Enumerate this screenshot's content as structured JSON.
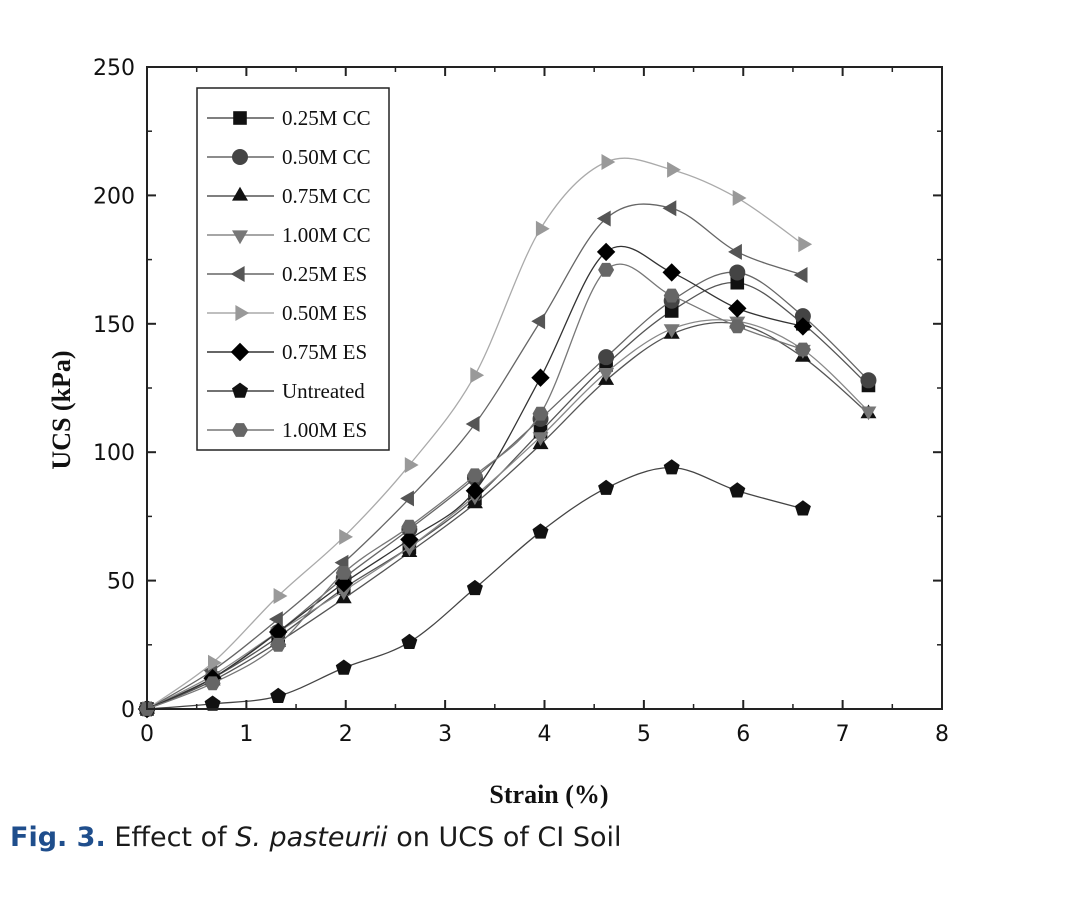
{
  "chart_data": {
    "type": "line",
    "xlabel": "Strain (%)",
    "ylabel": "UCS (kPa)",
    "xlim": [
      0,
      8
    ],
    "ylim": [
      0,
      250
    ],
    "xticks": [
      0,
      1,
      2,
      3,
      4,
      5,
      6,
      7,
      8
    ],
    "yticks": [
      0,
      50,
      100,
      150,
      200,
      250
    ],
    "grid": false,
    "legend_position": "top-left",
    "series": [
      {
        "name": "0.25M CC",
        "marker": "square",
        "color": "#111111",
        "line_color": "#555555",
        "x": [
          0,
          0.66,
          1.32,
          1.98,
          2.64,
          3.3,
          3.96,
          4.62,
          5.28,
          5.94,
          6.6,
          7.26
        ],
        "y": [
          0,
          12,
          28,
          47,
          63,
          82,
          108,
          134,
          155,
          166,
          150,
          126
        ]
      },
      {
        "name": "0.50M CC",
        "marker": "circle",
        "color": "#444444",
        "line_color": "#666666",
        "x": [
          0,
          0.66,
          1.32,
          1.98,
          2.64,
          3.3,
          3.96,
          4.62,
          5.28,
          5.94,
          6.6,
          7.26
        ],
        "y": [
          0,
          12,
          30,
          51,
          70,
          90,
          113,
          137,
          159,
          170,
          153,
          128
        ]
      },
      {
        "name": "0.75M CC",
        "marker": "triangle-up",
        "color": "#111111",
        "line_color": "#555555",
        "x": [
          0,
          0.66,
          1.32,
          1.98,
          2.64,
          3.3,
          3.96,
          4.62,
          5.28,
          5.94,
          6.6,
          7.26
        ],
        "y": [
          0,
          11,
          26,
          43,
          61,
          80,
          103,
          128,
          146,
          150,
          137,
          115
        ]
      },
      {
        "name": "1.00M CC",
        "marker": "triangle-down",
        "color": "#777777",
        "line_color": "#888888",
        "x": [
          0,
          0.66,
          1.32,
          1.98,
          2.64,
          3.3,
          3.96,
          4.62,
          5.28,
          5.94,
          6.6,
          7.26
        ],
        "y": [
          0,
          13,
          30,
          46,
          63,
          83,
          106,
          131,
          148,
          151,
          140,
          116
        ]
      },
      {
        "name": "0.25M ES",
        "marker": "triangle-left",
        "color": "#555555",
        "line_color": "#666666",
        "x": [
          0,
          0.66,
          1.32,
          1.98,
          2.64,
          3.3,
          3.96,
          4.62,
          5.28,
          5.94,
          6.6
        ],
        "y": [
          0,
          15,
          35,
          57,
          82,
          111,
          151,
          191,
          195,
          178,
          169
        ]
      },
      {
        "name": "0.50M ES",
        "marker": "triangle-right",
        "color": "#999999",
        "line_color": "#aaaaaa",
        "x": [
          0,
          0.66,
          1.32,
          1.98,
          2.64,
          3.3,
          3.96,
          4.62,
          5.28,
          5.94,
          6.6
        ],
        "y": [
          0,
          18,
          44,
          67,
          95,
          130,
          187,
          213,
          210,
          199,
          181
        ]
      },
      {
        "name": "0.75M ES",
        "marker": "diamond",
        "color": "#000000",
        "line_color": "#333333",
        "x": [
          0,
          0.66,
          1.32,
          1.98,
          2.64,
          3.3,
          3.96,
          4.62,
          5.28,
          5.94,
          6.6
        ],
        "y": [
          0,
          12,
          30,
          49,
          66,
          85,
          129,
          178,
          170,
          156,
          149
        ]
      },
      {
        "name": "Untreated",
        "marker": "pentagon",
        "color": "#111111",
        "line_color": "#444444",
        "x": [
          0,
          0.66,
          1.32,
          1.98,
          2.64,
          3.3,
          3.96,
          4.62,
          5.28,
          5.94,
          6.6
        ],
        "y": [
          0,
          2,
          5,
          16,
          26,
          47,
          69,
          86,
          94,
          85,
          78
        ]
      },
      {
        "name": "1.00M ES",
        "marker": "hexagon",
        "color": "#666666",
        "line_color": "#777777",
        "x": [
          0,
          0.66,
          1.32,
          1.98,
          2.64,
          3.3,
          3.96,
          4.62,
          5.28,
          5.94,
          6.6
        ],
        "y": [
          0,
          10,
          25,
          53,
          71,
          91,
          115,
          171,
          161,
          149,
          140
        ]
      }
    ]
  },
  "caption": {
    "label": "Fig. 3.",
    "text_before": " Effect of ",
    "italic": "S. pasteurii",
    "text_after": " on UCS of CI Soil"
  }
}
